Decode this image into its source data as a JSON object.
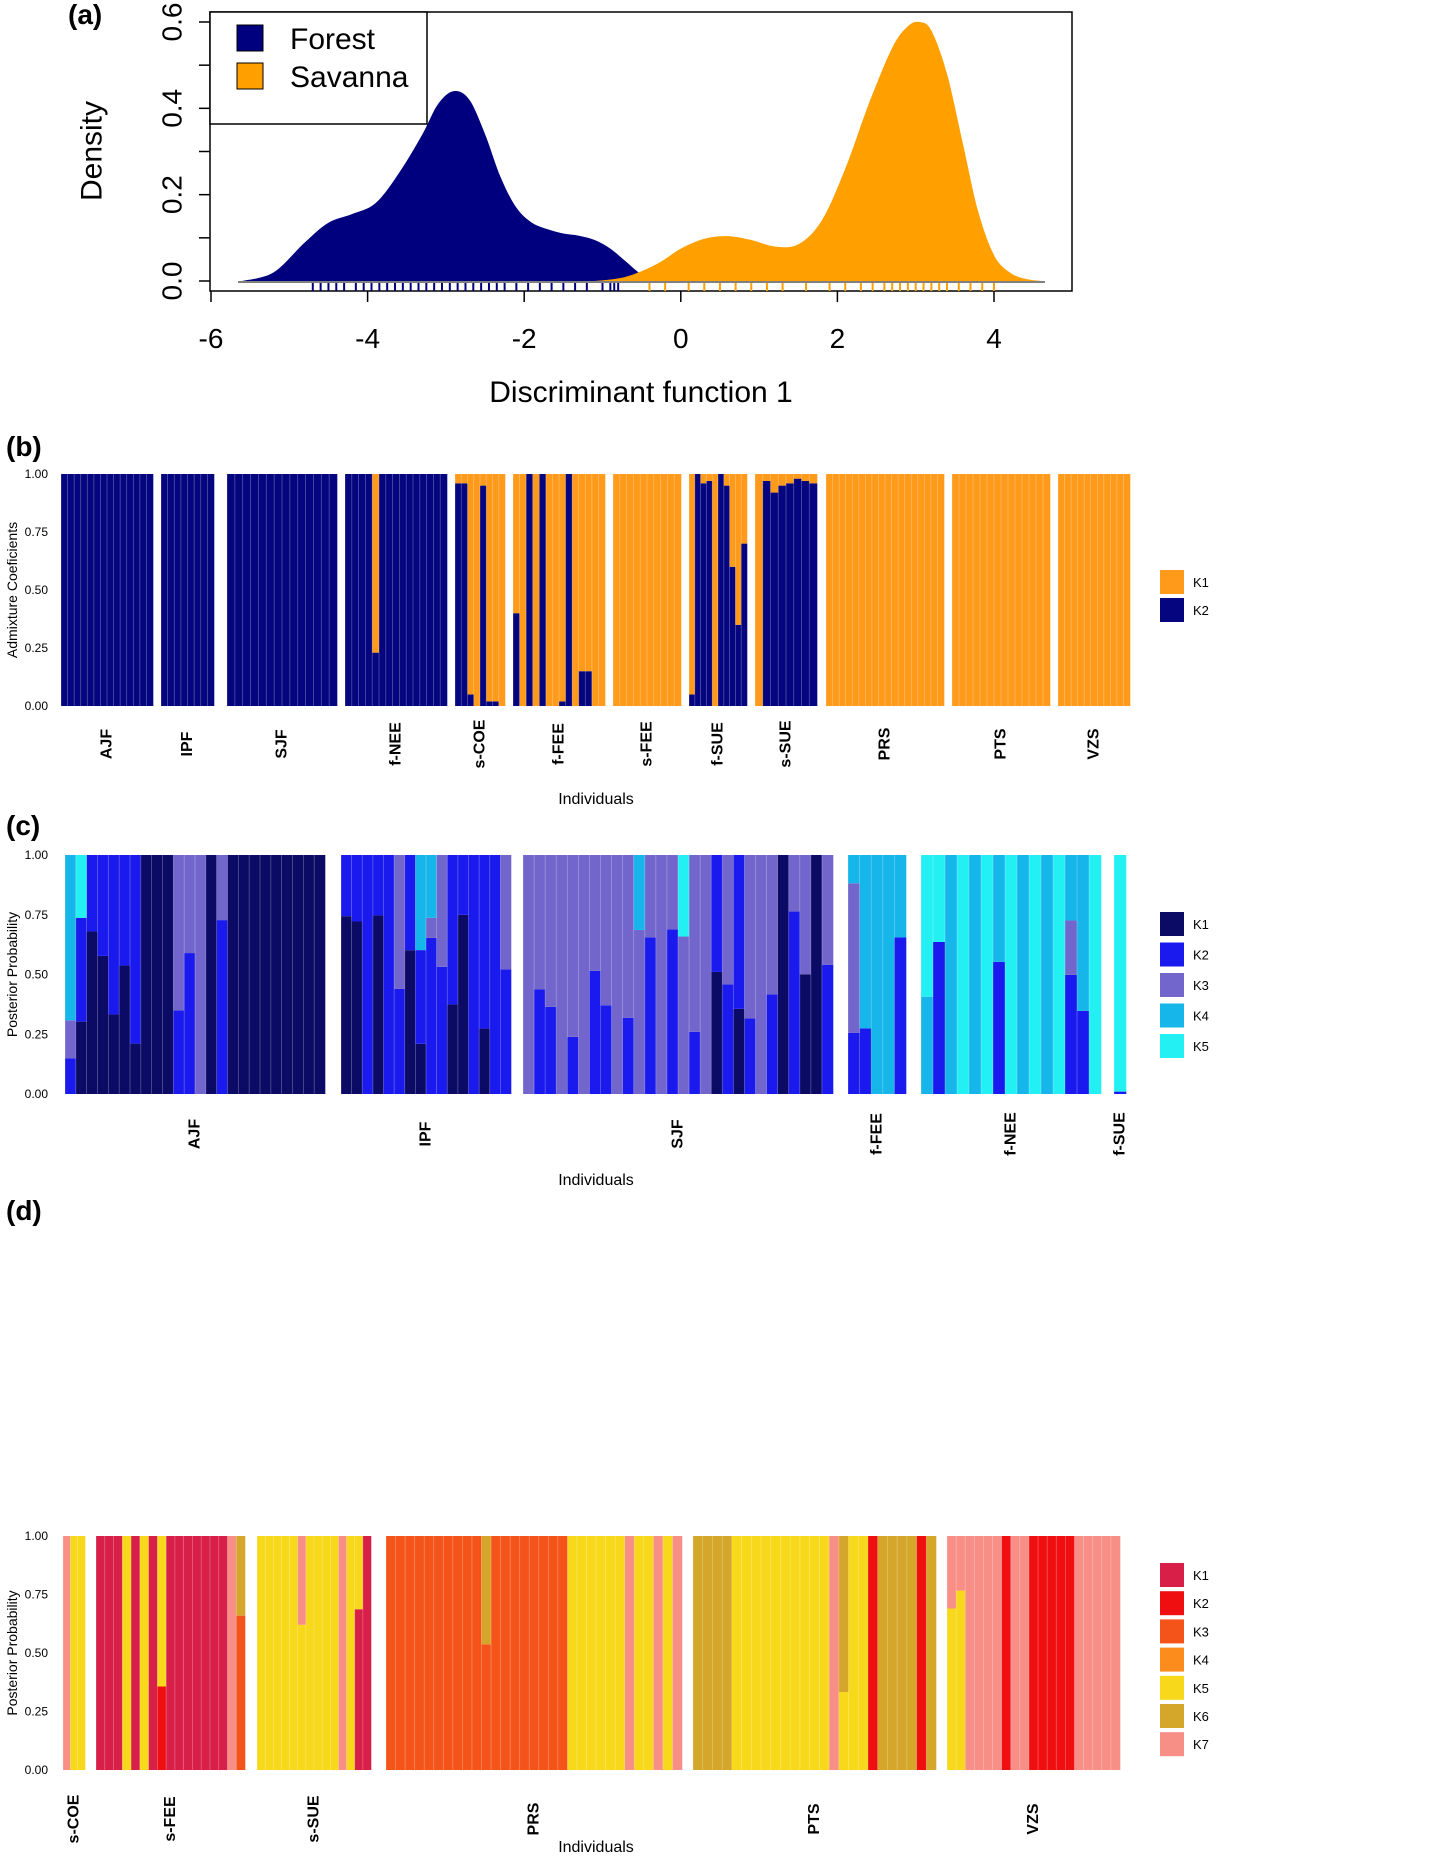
{
  "chart_data": [
    {
      "id": "a",
      "type": "area",
      "panel_label": "(a)",
      "xlabel": "Discriminant function 1",
      "ylabel": "Density",
      "xlim": [
        -6,
        5
      ],
      "ylim": [
        0,
        0.6
      ],
      "x_ticks": [
        -6,
        -4,
        -2,
        0,
        2,
        4
      ],
      "y_ticks": [
        0.0,
        0.2,
        0.4,
        0.6
      ],
      "x_tick_labels": [
        "-6",
        "-4",
        "-2",
        "0",
        "2",
        "4"
      ],
      "y_tick_labels": [
        "0.0",
        "0.2",
        "0.4",
        "0.6"
      ],
      "legend": {
        "position": "top-left",
        "entries": [
          "Forest",
          "Savanna"
        ]
      },
      "series": [
        {
          "name": "Forest",
          "color": "#00007f",
          "x": [
            -5.6,
            -5.2,
            -4.8,
            -4.5,
            -4.2,
            -3.9,
            -3.6,
            -3.3,
            -3.1,
            -2.9,
            -2.7,
            -2.5,
            -2.3,
            -2.1,
            -1.9,
            -1.7,
            -1.5,
            -1.3,
            -1.1,
            -0.9,
            -0.7,
            -0.5,
            -0.3
          ],
          "y": [
            0.0,
            0.02,
            0.09,
            0.135,
            0.155,
            0.18,
            0.25,
            0.34,
            0.41,
            0.44,
            0.42,
            0.34,
            0.24,
            0.17,
            0.135,
            0.12,
            0.11,
            0.105,
            0.095,
            0.075,
            0.045,
            0.015,
            0.0
          ]
        },
        {
          "name": "Savanna",
          "color": "#ffa000",
          "x": [
            -1.1,
            -0.7,
            -0.3,
            0.0,
            0.3,
            0.6,
            0.9,
            1.2,
            1.5,
            1.8,
            2.1,
            2.4,
            2.7,
            2.9,
            3.05,
            3.2,
            3.4,
            3.6,
            3.8,
            4.0,
            4.2,
            4.4,
            4.6
          ],
          "y": [
            0.0,
            0.01,
            0.04,
            0.075,
            0.098,
            0.104,
            0.095,
            0.08,
            0.085,
            0.14,
            0.26,
            0.41,
            0.54,
            0.59,
            0.6,
            0.58,
            0.48,
            0.32,
            0.16,
            0.06,
            0.02,
            0.005,
            0.0
          ]
        }
      ],
      "rug": [
        {
          "series": "Forest",
          "x": [
            -4.7,
            -4.6,
            -4.5,
            -4.4,
            -4.3,
            -4.15,
            -4.05,
            -3.95,
            -3.85,
            -3.75,
            -3.65,
            -3.55,
            -3.45,
            -3.35,
            -3.25,
            -3.15,
            -3.05,
            -2.95,
            -2.85,
            -2.75,
            -2.65,
            -2.55,
            -2.45,
            -2.35,
            -2.25,
            -2.1,
            -1.95,
            -1.8,
            -1.65,
            -1.5,
            -1.35,
            -1.2,
            -1.0,
            -0.9,
            -0.85,
            -0.8
          ]
        },
        {
          "series": "Savanna",
          "x": [
            -0.4,
            -0.2,
            0.1,
            0.3,
            0.5,
            0.7,
            0.9,
            1.1,
            1.3,
            1.6,
            1.9,
            2.1,
            2.3,
            2.45,
            2.6,
            2.7,
            2.8,
            2.9,
            3.0,
            3.1,
            3.2,
            3.3,
            3.4,
            3.55,
            3.7,
            3.85,
            4.0
          ]
        }
      ]
    },
    {
      "id": "b",
      "type": "bar",
      "stacked": true,
      "panel_label": "(b)",
      "xlabel": "Individuals",
      "ylabel": "Admixture Coeficients",
      "ylim": [
        0,
        1
      ],
      "y_tick_labels": [
        "0.00",
        "0.25",
        "0.50",
        "0.75",
        "1.00"
      ],
      "legend": {
        "position": "right",
        "entries": [
          "K1",
          "K2"
        ]
      },
      "components": [
        {
          "name": "K1",
          "color": "#ff9a1a"
        },
        {
          "name": "K2",
          "color": "#05057f"
        }
      ],
      "groups": [
        {
          "label": "AJF",
          "n": 14,
          "pattern": "K2"
        },
        {
          "label": "IPF",
          "n": 8,
          "pattern": "K2"
        },
        {
          "label": "SJF",
          "n": 14,
          "pattern": "K2"
        },
        {
          "label": "f-NEE",
          "n": 15,
          "pattern": "K2",
          "special": [
            [
              4,
              0.23
            ]
          ]
        },
        {
          "label": "s-COE",
          "n": 8,
          "pattern": "mixB1"
        },
        {
          "label": "f-FEE",
          "n": 14,
          "pattern": "mixB2"
        },
        {
          "label": "s-FEE",
          "n": 10,
          "pattern": "K1"
        },
        {
          "label": "f-SUE",
          "n": 10,
          "pattern": "mixB3"
        },
        {
          "label": "s-SUE",
          "n": 8,
          "pattern": "mixB4"
        },
        {
          "label": "PRS",
          "n": 18,
          "pattern": "K1"
        },
        {
          "label": "PTS",
          "n": 14,
          "pattern": "K1"
        },
        {
          "label": "VZS",
          "n": 11,
          "pattern": "K1"
        }
      ]
    },
    {
      "id": "c",
      "type": "bar",
      "stacked": true,
      "panel_label": "(c)",
      "xlabel": "Individuals",
      "ylabel": "Posterior Probability",
      "ylim": [
        0,
        1
      ],
      "y_tick_labels": [
        "0.00",
        "0.25",
        "0.50",
        "0.75",
        "1.00"
      ],
      "legend": {
        "position": "right",
        "entries": [
          "K1",
          "K2",
          "K3",
          "K4",
          "K5"
        ]
      },
      "components": [
        {
          "name": "K1",
          "color": "#0b0a64"
        },
        {
          "name": "K2",
          "color": "#1a1aee"
        },
        {
          "name": "K3",
          "color": "#7266cc"
        },
        {
          "name": "K4",
          "color": "#16b6ea"
        },
        {
          "name": "K5",
          "color": "#22f0f2"
        }
      ],
      "groups": [
        {
          "label": "AJF",
          "n": 24
        },
        {
          "label": "IPF",
          "n": 16
        },
        {
          "label": "SJF",
          "n": 28
        },
        {
          "label": "f-FEE",
          "n": 5
        },
        {
          "label": "f-NEE",
          "n": 15
        },
        {
          "label": "f-SUE",
          "n": 1
        }
      ]
    },
    {
      "id": "d",
      "type": "bar",
      "stacked": true,
      "panel_label": "(d)",
      "xlabel": "Individuals",
      "ylabel": "Posterior Probability",
      "ylim": [
        0,
        1
      ],
      "y_tick_labels": [
        "0.00",
        "0.25",
        "0.50",
        "0.75",
        "1.00"
      ],
      "legend": {
        "position": "right",
        "entries": [
          "K1",
          "K2",
          "K3",
          "K4",
          "K5",
          "K6",
          "K7"
        ]
      },
      "components": [
        {
          "name": "K1",
          "color": "#d81f48"
        },
        {
          "name": "K2",
          "color": "#ef0f10"
        },
        {
          "name": "K3",
          "color": "#f4541a"
        },
        {
          "name": "K4",
          "color": "#fc8c1c"
        },
        {
          "name": "K5",
          "color": "#f8d81a"
        },
        {
          "name": "K6",
          "color": "#d4a62a"
        },
        {
          "name": "K7",
          "color": "#f78f86"
        }
      ],
      "groups": [
        {
          "label": "s-COE",
          "n": 3
        },
        {
          "label": "s-FEE",
          "n": 17
        },
        {
          "label": "s-SUE",
          "n": 14
        },
        {
          "label": "PRS",
          "n": 31
        },
        {
          "label": "PTS",
          "n": 25
        },
        {
          "label": "VZS",
          "n": 19
        }
      ]
    }
  ]
}
